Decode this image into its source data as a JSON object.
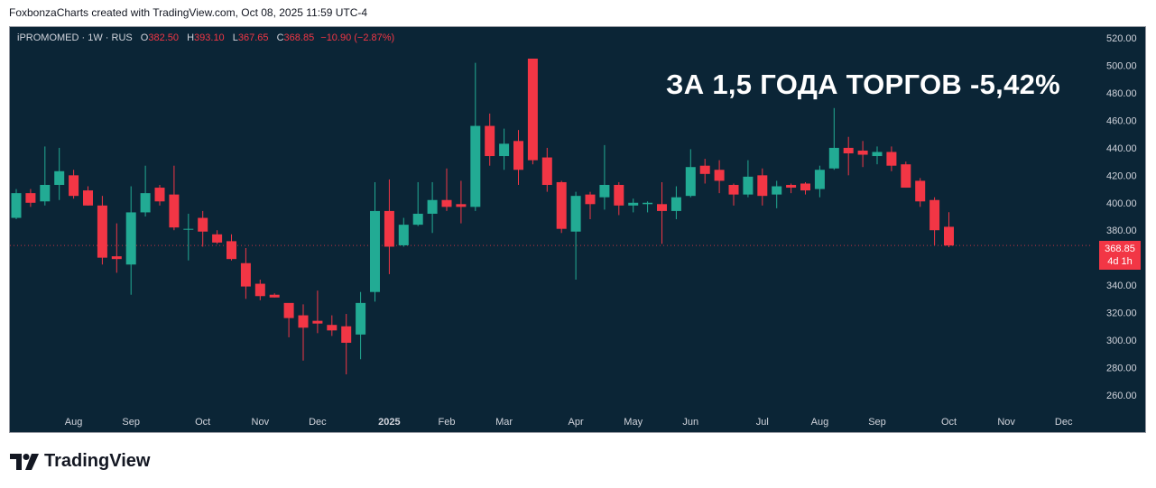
{
  "header": {
    "text": "FoxbonzaCharts created with TradingView.com, Oct 08, 2025 11:59 UTC-4"
  },
  "legend": {
    "symbol": "iPROMOMED · 1W · RUS",
    "o_label": "O",
    "o_value": "382.50",
    "h_label": "H",
    "h_value": "393.10",
    "l_label": "L",
    "l_value": "367.65",
    "c_label": "C",
    "c_value": "368.85",
    "change": "−10.90 (−2.87%)"
  },
  "headline": "ЗА 1,5 ГОДА ТОРГОВ -5,42%",
  "price_badge": {
    "price": "368.85",
    "countdown": "4d 1h"
  },
  "footer": {
    "brand": "TradingView"
  },
  "colors": {
    "background": "#0b2536",
    "up": "#22ab94",
    "down": "#f23645",
    "axis_text": "#d1d4dc",
    "price_line": "#f23645"
  },
  "chart_data": {
    "type": "candlestick",
    "title": "",
    "xlabel": "",
    "ylabel": "",
    "ylim": [
      252,
      528
    ],
    "y_ticks": [
      260,
      280,
      300,
      320,
      340,
      360,
      380,
      400,
      420,
      440,
      460,
      480,
      500,
      520
    ],
    "y_tick_labels": [
      "260.00",
      "280.00",
      "300.00",
      "320.00",
      "340.00",
      "360.00",
      "380.00",
      "400.00",
      "420.00",
      "440.00",
      "460.00",
      "480.00",
      "500.00",
      "520.00"
    ],
    "x_labels": [
      {
        "label": "Aug",
        "index": 4
      },
      {
        "label": "Sep",
        "index": 8
      },
      {
        "label": "Oct",
        "index": 13
      },
      {
        "label": "Nov",
        "index": 17
      },
      {
        "label": "Dec",
        "index": 21
      },
      {
        "label": "2025",
        "index": 26
      },
      {
        "label": "Feb",
        "index": 30
      },
      {
        "label": "Mar",
        "index": 34
      },
      {
        "label": "Apr",
        "index": 39
      },
      {
        "label": "May",
        "index": 43
      },
      {
        "label": "Jun",
        "index": 47
      },
      {
        "label": "Jul",
        "index": 52
      },
      {
        "label": "Aug",
        "index": 56
      },
      {
        "label": "Sep",
        "index": 60
      },
      {
        "label": "Oct",
        "index": 65
      },
      {
        "label": "Nov",
        "index": 69
      },
      {
        "label": "Dec",
        "index": 73
      }
    ],
    "last_price": 368.85,
    "grid": false,
    "candles": [
      {
        "o": 389,
        "h": 410,
        "l": 388,
        "c": 407
      },
      {
        "o": 407,
        "h": 410,
        "l": 397,
        "c": 400
      },
      {
        "o": 401,
        "h": 441,
        "l": 398,
        "c": 413
      },
      {
        "o": 413,
        "h": 440,
        "l": 402,
        "c": 423
      },
      {
        "o": 420,
        "h": 424,
        "l": 403,
        "c": 405
      },
      {
        "o": 409,
        "h": 412,
        "l": 398,
        "c": 398
      },
      {
        "o": 398,
        "h": 405,
        "l": 355,
        "c": 360
      },
      {
        "o": 361,
        "h": 385,
        "l": 349,
        "c": 359
      },
      {
        "o": 355,
        "h": 412,
        "l": 333,
        "c": 393
      },
      {
        "o": 393,
        "h": 427,
        "l": 390,
        "c": 407
      },
      {
        "o": 411,
        "h": 413,
        "l": 398,
        "c": 401
      },
      {
        "o": 406,
        "h": 427,
        "l": 380,
        "c": 382
      },
      {
        "o": 381,
        "h": 392,
        "l": 358,
        "c": 381
      },
      {
        "o": 389,
        "h": 394,
        "l": 368,
        "c": 379
      },
      {
        "o": 377,
        "h": 380,
        "l": 370,
        "c": 371
      },
      {
        "o": 372,
        "h": 377,
        "l": 358,
        "c": 359
      },
      {
        "o": 356,
        "h": 367,
        "l": 330,
        "c": 339
      },
      {
        "o": 341,
        "h": 344,
        "l": 329,
        "c": 332
      },
      {
        "o": 333,
        "h": 334,
        "l": 331,
        "c": 331
      },
      {
        "o": 327,
        "h": 326,
        "l": 302,
        "c": 316
      },
      {
        "o": 318,
        "h": 326,
        "l": 285,
        "c": 309
      },
      {
        "o": 314,
        "h": 336,
        "l": 305,
        "c": 312
      },
      {
        "o": 311,
        "h": 318,
        "l": 303,
        "c": 307
      },
      {
        "o": 310,
        "h": 319,
        "l": 275,
        "c": 298
      },
      {
        "o": 304,
        "h": 335,
        "l": 286,
        "c": 327
      },
      {
        "o": 335,
        "h": 415,
        "l": 328,
        "c": 394
      },
      {
        "o": 394,
        "h": 417,
        "l": 348,
        "c": 368
      },
      {
        "o": 369,
        "h": 389,
        "l": 368,
        "c": 384
      },
      {
        "o": 384,
        "h": 415,
        "l": 383,
        "c": 392
      },
      {
        "o": 392,
        "h": 415,
        "l": 378,
        "c": 402
      },
      {
        "o": 402,
        "h": 425,
        "l": 394,
        "c": 397
      },
      {
        "o": 399,
        "h": 416,
        "l": 385,
        "c": 397
      },
      {
        "o": 397,
        "h": 502,
        "l": 394,
        "c": 456
      },
      {
        "o": 456,
        "h": 465,
        "l": 427,
        "c": 434
      },
      {
        "o": 434,
        "h": 454,
        "l": 424,
        "c": 443
      },
      {
        "o": 445,
        "h": 453,
        "l": 413,
        "c": 424
      },
      {
        "o": 505,
        "h": 505,
        "l": 428,
        "c": 431
      },
      {
        "o": 433,
        "h": 440,
        "l": 408,
        "c": 413
      },
      {
        "o": 415,
        "h": 416,
        "l": 378,
        "c": 381
      },
      {
        "o": 379,
        "h": 408,
        "l": 344,
        "c": 405
      },
      {
        "o": 406,
        "h": 408,
        "l": 388,
        "c": 399
      },
      {
        "o": 404,
        "h": 442,
        "l": 395,
        "c": 413
      },
      {
        "o": 413,
        "h": 415,
        "l": 391,
        "c": 398
      },
      {
        "o": 398,
        "h": 403,
        "l": 393,
        "c": 400
      },
      {
        "o": 399,
        "h": 401,
        "l": 393,
        "c": 400
      },
      {
        "o": 399,
        "h": 415,
        "l": 370,
        "c": 394
      },
      {
        "o": 394,
        "h": 412,
        "l": 388,
        "c": 404
      },
      {
        "o": 405,
        "h": 439,
        "l": 404,
        "c": 426
      },
      {
        "o": 427,
        "h": 432,
        "l": 414,
        "c": 421
      },
      {
        "o": 424,
        "h": 431,
        "l": 407,
        "c": 416
      },
      {
        "o": 413,
        "h": 414,
        "l": 398,
        "c": 406
      },
      {
        "o": 406,
        "h": 431,
        "l": 404,
        "c": 419
      },
      {
        "o": 420,
        "h": 425,
        "l": 398,
        "c": 405
      },
      {
        "o": 406,
        "h": 416,
        "l": 396,
        "c": 412
      },
      {
        "o": 413,
        "h": 414,
        "l": 407,
        "c": 411
      },
      {
        "o": 414,
        "h": 415,
        "l": 406,
        "c": 409
      },
      {
        "o": 410,
        "h": 427,
        "l": 404,
        "c": 424
      },
      {
        "o": 425,
        "h": 469,
        "l": 424,
        "c": 440
      },
      {
        "o": 440,
        "h": 448,
        "l": 420,
        "c": 436
      },
      {
        "o": 438,
        "h": 445,
        "l": 426,
        "c": 435
      },
      {
        "o": 434,
        "h": 441,
        "l": 428,
        "c": 437
      },
      {
        "o": 437,
        "h": 441,
        "l": 423,
        "c": 427
      },
      {
        "o": 428,
        "h": 430,
        "l": 411,
        "c": 411
      },
      {
        "o": 416,
        "h": 418,
        "l": 397,
        "c": 401
      },
      {
        "o": 402,
        "h": 404,
        "l": 369,
        "c": 380
      },
      {
        "o": 382.5,
        "h": 393.1,
        "l": 367.65,
        "c": 368.85
      }
    ]
  }
}
